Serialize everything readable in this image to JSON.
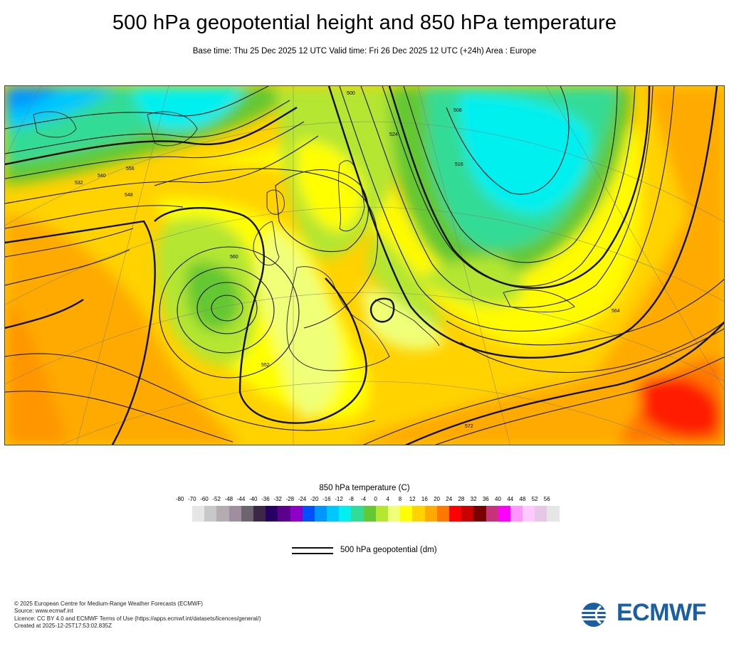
{
  "header": {
    "title": "500 hPa geopotential height and 850 hPa temperature",
    "subtitle": "Base time: Thu 25 Dec 2025 12 UTC Valid time: Fri 26 Dec 2025 12 UTC (+24h) Area : Europe"
  },
  "map": {
    "contour_labels": [
      "500",
      "508",
      "516",
      "524",
      "532",
      "540",
      "548",
      "556",
      "560",
      "552",
      "564",
      "572"
    ]
  },
  "legend": {
    "title": "850 hPa temperature (C)",
    "ticks": [
      "-80",
      "-70",
      "-60",
      "-52",
      "-48",
      "-44",
      "-40",
      "-36",
      "-32",
      "-28",
      "-24",
      "-20",
      "-16",
      "-12",
      "-8",
      "-4",
      "0",
      "4",
      "8",
      "12",
      "16",
      "20",
      "24",
      "28",
      "32",
      "36",
      "40",
      "44",
      "48",
      "52",
      "56"
    ],
    "colors": [
      "#e6e6e6",
      "#c8c8c8",
      "#b4acb0",
      "#a08ea0",
      "#6e6470",
      "#3c2846",
      "#280064",
      "#5a008c",
      "#8c00c8",
      "#0050ff",
      "#0096ff",
      "#00c8ff",
      "#00f0f0",
      "#32dc96",
      "#64c832",
      "#b4e632",
      "#f0ff78",
      "#ffff00",
      "#ffd200",
      "#ffaa00",
      "#ff7800",
      "#ff0000",
      "#c80000",
      "#780000",
      "#c83278",
      "#ff00ff",
      "#ff96ff",
      "#ffc8ff",
      "#e6c8e6",
      "#e6e6e6"
    ],
    "line_label": "500 hPa geopotential (dm)"
  },
  "footer": {
    "line1": "© 2025 European Centre for Medium-Range Weather Forecasts (ECMWF)",
    "line2": "Source: www.ecmwf.int",
    "line3": "Licence: CC BY 4.0 and ECMWF Terms of Use (https://apps.ecmwf.int/datasets/licences/general/)",
    "line4": "Created at 2025-12-25T17:53:02.835Z"
  },
  "logo": {
    "text": "ECMWF"
  }
}
